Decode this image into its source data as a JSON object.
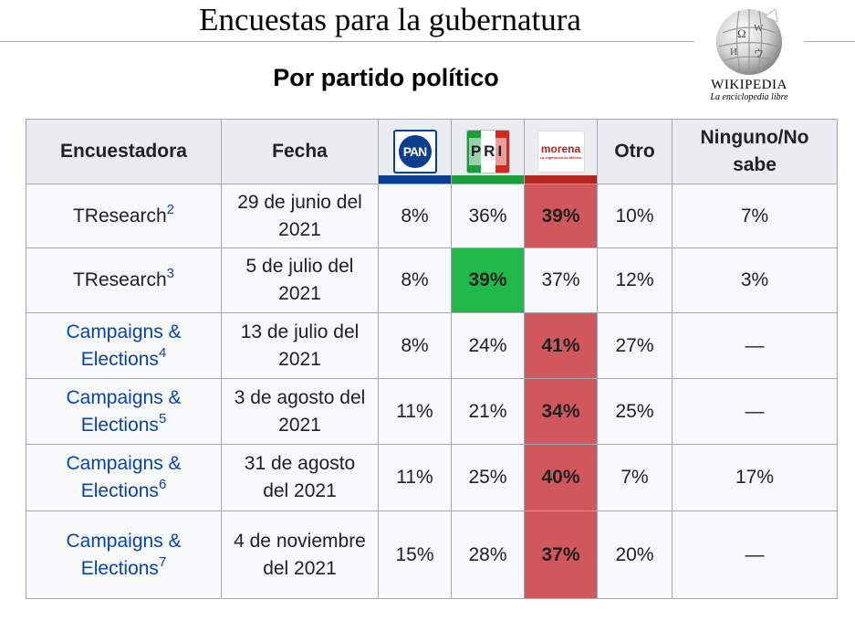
{
  "page": {
    "title": "Encuestas para la gubernatura",
    "caption": "Por partido político"
  },
  "logo": {
    "name": "Wikipedia",
    "tagline": "La enciclopedia libre",
    "icon": "wikipedia-globe-icon"
  },
  "table": {
    "headers": {
      "pollster": "Encuestadora",
      "date": "Fecha",
      "other": "Otro",
      "none": "Ninguno/No sabe"
    },
    "parties": [
      {
        "key": "pan",
        "logo_text": "PAN",
        "color": "#0b3d91",
        "icon": "pan-logo-icon"
      },
      {
        "key": "pri",
        "logo_text": "PRI",
        "color": "#1a9e3c",
        "icon": "pri-logo-icon"
      },
      {
        "key": "morena",
        "logo_text": "morena",
        "logo_subtext": "La esperanza de México",
        "color": "#b5261e",
        "icon": "morena-logo-icon"
      }
    ],
    "rows": [
      {
        "pollster": "TResearch",
        "ref": "2",
        "link": false,
        "date": "29 de junio del 2021",
        "pan": "8%",
        "pri": "36%",
        "morena": "39%",
        "other": "10%",
        "none": "7%",
        "leader": "morena"
      },
      {
        "pollster": "TResearch",
        "ref": "3",
        "link": false,
        "date": "5 de julio del 2021",
        "pan": "8%",
        "pri": "39%",
        "morena": "37%",
        "other": "12%",
        "none": "3%",
        "leader": "pri"
      },
      {
        "pollster": "Campaigns & Elections",
        "ref": "4",
        "link": true,
        "date": "13 de julio del 2021",
        "pan": "8%",
        "pri": "24%",
        "morena": "41%",
        "other": "27%",
        "none": "—",
        "leader": "morena"
      },
      {
        "pollster": "Campaigns & Elections",
        "ref": "5",
        "link": true,
        "date": "3 de agosto del 2021",
        "pan": "11%",
        "pri": "21%",
        "morena": "34%",
        "other": "25%",
        "none": "—",
        "leader": "morena"
      },
      {
        "pollster": "Campaigns & Elections",
        "ref": "6",
        "link": true,
        "date": "31 de agosto del 2021",
        "pan": "11%",
        "pri": "25%",
        "morena": "40%",
        "other": "7%",
        "none": "17%",
        "leader": "morena"
      },
      {
        "pollster": "Campaigns & Elections",
        "ref": "7",
        "link": true,
        "date": "4 de noviembre del 2021",
        "pan": "15%",
        "pri": "28%",
        "morena": "37%",
        "other": "20%",
        "none": "—",
        "leader": "morena"
      }
    ]
  },
  "colors": {
    "lead_morena": "#d0575b",
    "lead_pri": "#20b94a",
    "link": "#0645ad",
    "header_bg": "#eaecf0",
    "cell_bg": "#f8f9fa",
    "border": "#a2a9b1"
  }
}
